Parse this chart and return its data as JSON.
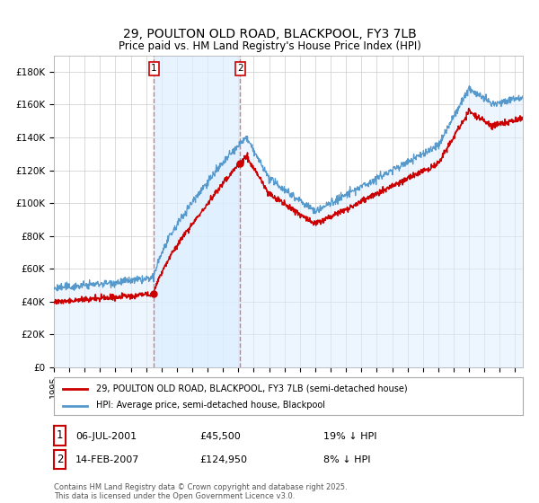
{
  "title": "29, POULTON OLD ROAD, BLACKPOOL, FY3 7LB",
  "subtitle": "Price paid vs. HM Land Registry's House Price Index (HPI)",
  "ylim": [
    0,
    190000
  ],
  "yticks": [
    0,
    20000,
    40000,
    60000,
    80000,
    100000,
    120000,
    140000,
    160000,
    180000
  ],
  "ytick_labels": [
    "£0",
    "£20K",
    "£40K",
    "£60K",
    "£80K",
    "£100K",
    "£120K",
    "£140K",
    "£160K",
    "£180K"
  ],
  "sale1": {
    "date_num": 2001.51,
    "price": 45500,
    "label": "1",
    "date_str": "06-JUL-2001",
    "hpi_diff": "19% ↓ HPI"
  },
  "sale2": {
    "date_num": 2007.12,
    "price": 124950,
    "label": "2",
    "date_str": "14-FEB-2007",
    "hpi_diff": "8% ↓ HPI"
  },
  "legend1_text": "29, POULTON OLD ROAD, BLACKPOOL, FY3 7LB (semi-detached house)",
  "legend2_text": "HPI: Average price, semi-detached house, Blackpool",
  "footer": "Contains HM Land Registry data © Crown copyright and database right 2025.\nThis data is licensed under the Open Government Licence v3.0.",
  "sale_line_color": "#cc0000",
  "sale_dot_color": "#cc0000",
  "hpi_line_color": "#5599cc",
  "hpi_fill_color": "#ddeeff",
  "vline_color": "#dd7777",
  "vfill_color": "#ddeeff",
  "background_color": "#ffffff",
  "grid_color": "#cccccc",
  "box_color": "#cc0000",
  "xmin": 1995.0,
  "xmax": 2025.5,
  "xtick_years": [
    1995,
    1996,
    1997,
    1998,
    1999,
    2000,
    2001,
    2002,
    2003,
    2004,
    2005,
    2006,
    2007,
    2008,
    2009,
    2010,
    2011,
    2012,
    2013,
    2014,
    2015,
    2016,
    2017,
    2018,
    2019,
    2020,
    2021,
    2022,
    2023,
    2024,
    2025
  ]
}
